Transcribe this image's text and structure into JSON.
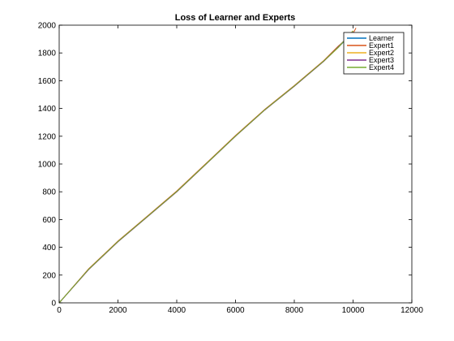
{
  "chart_data": {
    "type": "line",
    "title": "Loss of Learner and Experts",
    "xlabel": "",
    "ylabel": "",
    "xlim": [
      0,
      12000
    ],
    "ylim": [
      0,
      2000
    ],
    "xticks": [
      0,
      2000,
      4000,
      6000,
      8000,
      10000,
      12000
    ],
    "yticks": [
      0,
      200,
      400,
      600,
      800,
      1000,
      1200,
      1400,
      1600,
      1800,
      2000
    ],
    "grid": false,
    "legend_position": "top-right",
    "series": [
      {
        "name": "Learner",
        "color": "#0072BD",
        "x": [
          0,
          1000,
          2000,
          3000,
          4000,
          5000,
          6000,
          7000,
          8000,
          9000,
          9500,
          10000
        ],
        "y": [
          0,
          240,
          440,
          620,
          800,
          1000,
          1200,
          1390,
          1560,
          1740,
          1840,
          1950
        ]
      },
      {
        "name": "Expert1",
        "color": "#D95319",
        "x": [
          0,
          1000,
          2000,
          3000,
          4000,
          5000,
          6000,
          7000,
          8000,
          9000,
          9500,
          10000,
          10100
        ],
        "y": [
          0,
          245,
          445,
          625,
          805,
          1005,
          1205,
          1395,
          1565,
          1745,
          1850,
          1940,
          1980
        ]
      },
      {
        "name": "Expert2",
        "color": "#EDB120",
        "x": [
          0,
          1000,
          2000,
          3000,
          4000,
          5000,
          6000,
          7000,
          8000,
          9000,
          9500,
          10000
        ],
        "y": [
          0,
          240,
          440,
          620,
          800,
          1000,
          1200,
          1390,
          1560,
          1740,
          1840,
          1960
        ]
      },
      {
        "name": "Expert3",
        "color": "#7E2F8E",
        "x": [
          0,
          1000,
          2000,
          3000,
          4000,
          5000,
          6000,
          7000,
          8000,
          9000,
          9500,
          10000
        ],
        "y": [
          0,
          240,
          440,
          620,
          800,
          1000,
          1200,
          1390,
          1560,
          1740,
          1845,
          1955
        ]
      },
      {
        "name": "Expert4",
        "color": "#77AC30",
        "x": [
          0,
          1000,
          2000,
          3000,
          4000,
          5000,
          6000,
          7000,
          8000,
          9000,
          9500,
          10000
        ],
        "y": [
          0,
          242,
          442,
          622,
          802,
          1002,
          1202,
          1392,
          1562,
          1742,
          1842,
          1958
        ]
      }
    ]
  }
}
